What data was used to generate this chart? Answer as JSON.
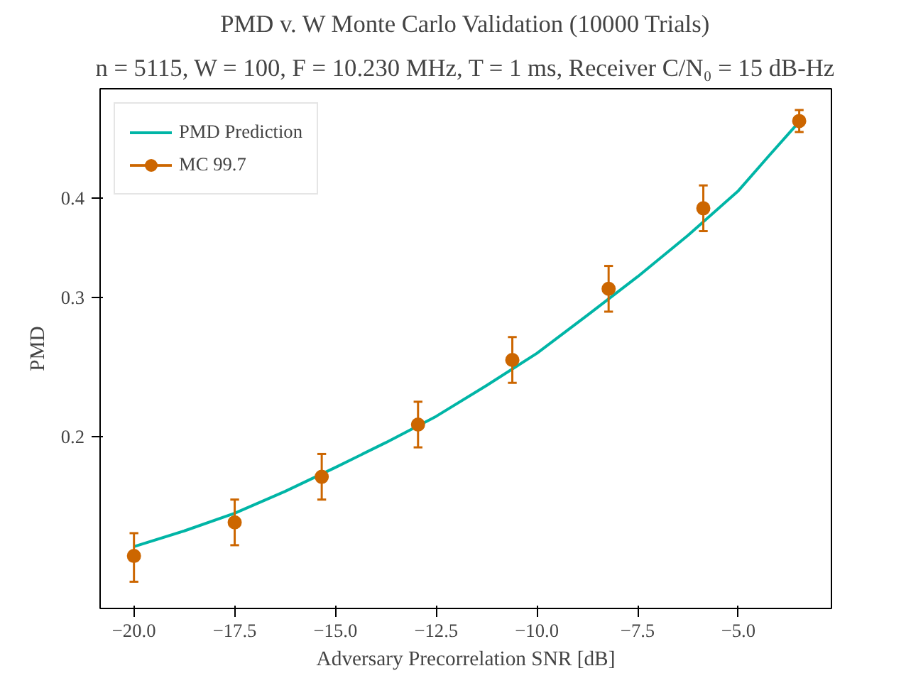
{
  "chart_data": {
    "type": "line",
    "title": "PMD v. W Monte Carlo Validation (10000 Trials)",
    "subtitle": "n = 5115, W = 100, F = 10.230 MHz, T = 1 ms, Receiver C/N₀ = 15 dB-Hz",
    "xlabel": "Adversary Precorrelation SNR [dB]",
    "ylabel": "PMD",
    "log": "y",
    "xlim": [
      -20.84,
      -2.69
    ],
    "ylim": [
      0.1213,
      0.55
    ],
    "xticks": [
      {
        "value": -20,
        "label": "−20.0"
      },
      {
        "value": -17.5,
        "label": "−17.5"
      },
      {
        "value": -15,
        "label": "−15.0"
      },
      {
        "value": -12.5,
        "label": "−12.5"
      },
      {
        "value": -10,
        "label": "−10.0"
      },
      {
        "value": -7.5,
        "label": "−7.5"
      },
      {
        "value": -5,
        "label": "−5.0"
      }
    ],
    "yticks": [
      0.2,
      0.3,
      0.4
    ],
    "grid": false,
    "legend": "top left",
    "series": [
      {
        "name": "PMD Prediction",
        "color": "#00b5a6",
        "marker": "none",
        "x": [
          -20,
          -18.75,
          -17.5,
          -16.25,
          -15,
          -13.75,
          -12.5,
          -11.25,
          -10,
          -8.75,
          -7.5,
          -6.25,
          -5,
          -4.25,
          -3.5
        ],
        "values": [
          0.1452,
          0.152,
          0.16,
          0.1705,
          0.1828,
          0.1965,
          0.2121,
          0.232,
          0.2548,
          0.2845,
          0.3184,
          0.359,
          0.4088,
          0.452,
          0.499
        ]
      },
      {
        "name": "MC 99.7",
        "type": "scatter",
        "color": "#cc6600",
        "marker": "circle",
        "x": [
          -20,
          -17.5,
          -15.34,
          -12.95,
          -10.61,
          -8.22,
          -5.87,
          -3.49
        ],
        "values": [
          0.1413,
          0.1558,
          0.1779,
          0.2071,
          0.2499,
          0.3074,
          0.3885,
          0.5008
        ],
        "errors": [
          [
            0.1311,
            0.151
          ],
          [
            0.1458,
            0.1665
          ],
          [
            0.1665,
            0.1901
          ],
          [
            0.1938,
            0.2213
          ],
          [
            0.2338,
            0.2671
          ],
          [
            0.2876,
            0.3285
          ],
          [
            0.3635,
            0.4152
          ],
          [
            0.485,
            0.517
          ]
        ]
      }
    ]
  }
}
